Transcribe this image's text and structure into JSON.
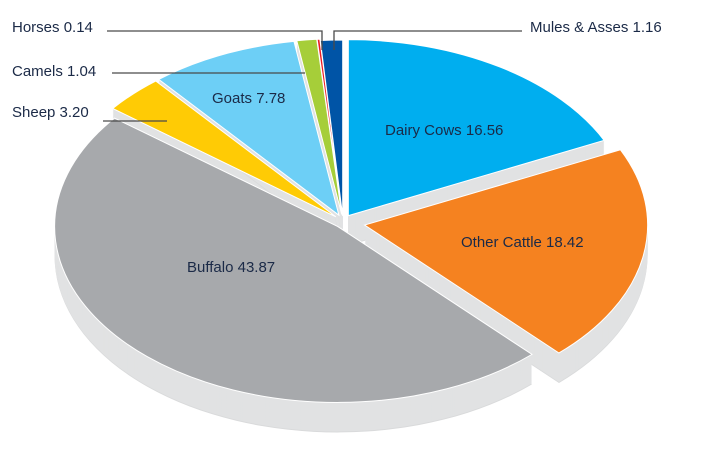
{
  "chart_data": {
    "type": "pie",
    "style": "3d-exploded",
    "title": "",
    "slices": [
      {
        "name": "Dairy Cows",
        "value": 16.56,
        "color": "#00aeef",
        "label_value": "16.56"
      },
      {
        "name": "Other Cattle",
        "value": 18.42,
        "color": "#f58220",
        "label_value": "18.42"
      },
      {
        "name": "Buffalo",
        "value": 43.87,
        "color": "#a7a9ac",
        "label_value": "43.87"
      },
      {
        "name": "Sheep",
        "value": 3.2,
        "color": "#ffcb05",
        "label_value": "3.20"
      },
      {
        "name": "Goats",
        "value": 7.78,
        "color": "#6dcff6",
        "label_value": "7.78"
      },
      {
        "name": "Camels",
        "value": 1.04,
        "color": "#a6ce39",
        "label_value": "1.04"
      },
      {
        "name": "Horses",
        "value": 0.14,
        "color": "#ed1c24",
        "label_value": "0.14"
      },
      {
        "name": "Mules & Asses",
        "value": 1.16,
        "color": "#0054a6",
        "label_value": "1.16"
      }
    ],
    "side_color": "#e1e2e3",
    "text_color": "#1b2a47"
  }
}
